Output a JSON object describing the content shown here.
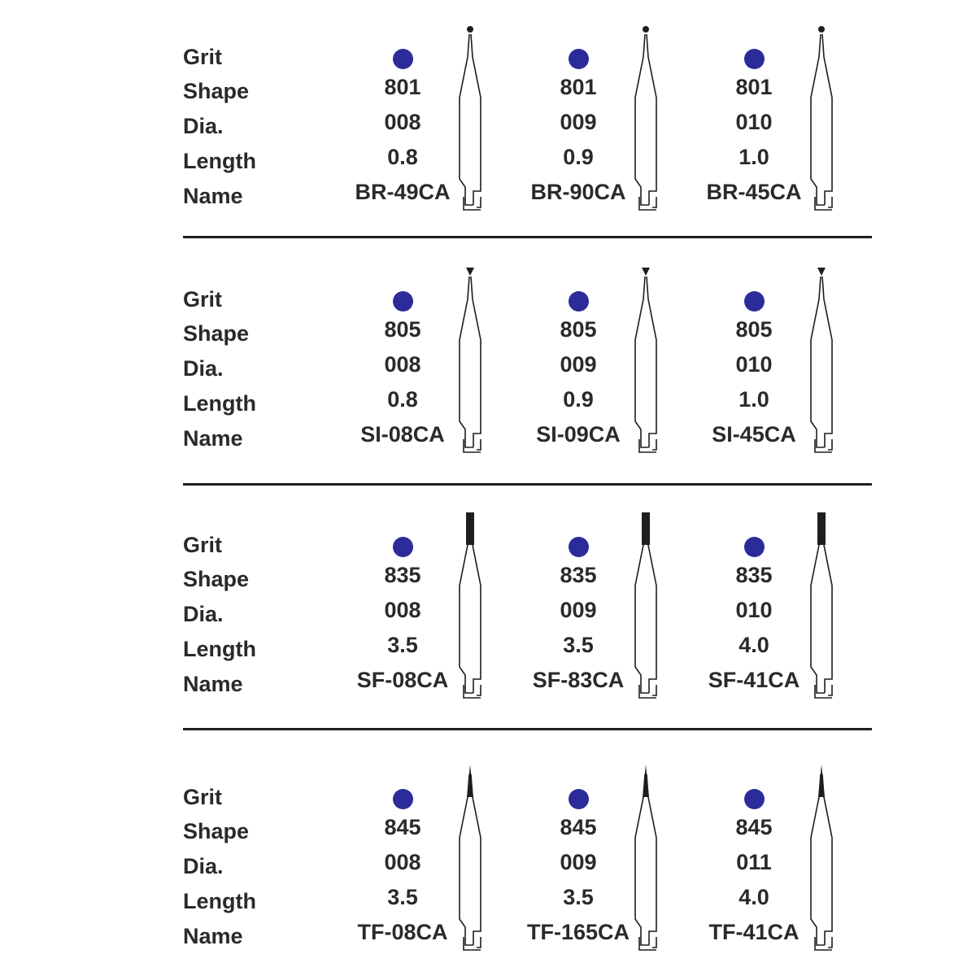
{
  "labels": [
    "Grit",
    "Shape",
    "Dia.",
    "Length",
    "Name"
  ],
  "colors": {
    "grit_dot": "#2b2c9a",
    "text": "#2a2a2a",
    "line": "#1e1e1e"
  },
  "groups": [
    {
      "tip_shape": "ball-icon",
      "items": [
        {
          "shape": "801",
          "dia": "008",
          "length": "0.8",
          "name": "BR-49CA"
        },
        {
          "shape": "801",
          "dia": "009",
          "length": "0.9",
          "name": "BR-90CA"
        },
        {
          "shape": "801",
          "dia": "010",
          "length": "1.0",
          "name": "BR-45CA"
        }
      ]
    },
    {
      "tip_shape": "inverted-cone-icon",
      "items": [
        {
          "shape": "805",
          "dia": "008",
          "length": "0.8",
          "name": "SI-08CA"
        },
        {
          "shape": "805",
          "dia": "009",
          "length": "0.9",
          "name": "SI-09CA"
        },
        {
          "shape": "805",
          "dia": "010",
          "length": "1.0",
          "name": "SI-45CA"
        }
      ]
    },
    {
      "tip_shape": "cylinder-icon",
      "items": [
        {
          "shape": "835",
          "dia": "008",
          "length": "3.5",
          "name": "SF-08CA"
        },
        {
          "shape": "835",
          "dia": "009",
          "length": "3.5",
          "name": "SF-83CA"
        },
        {
          "shape": "835",
          "dia": "010",
          "length": "4.0",
          "name": "SF-41CA"
        }
      ]
    },
    {
      "tip_shape": "taper-icon",
      "items": [
        {
          "shape": "845",
          "dia": "008",
          "length": "3.5",
          "name": "TF-08CA"
        },
        {
          "shape": "845",
          "dia": "009",
          "length": "3.5",
          "name": "TF-165CA"
        },
        {
          "shape": "845",
          "dia": "011",
          "length": "4.0",
          "name": "TF-41CA"
        }
      ]
    }
  ]
}
